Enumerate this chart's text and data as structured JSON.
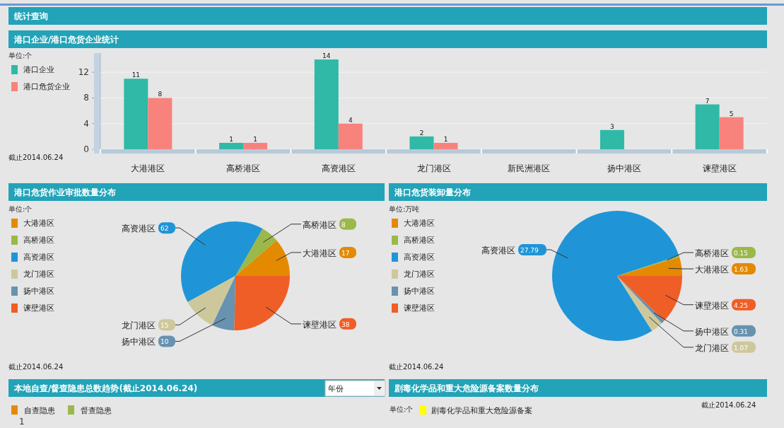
{
  "chart_data": [
    {
      "type": "bar",
      "subtitle": "统计查询",
      "title": "港口企业/港口危货企业统计",
      "categories": [
        "大港港区",
        "高桥港区",
        "高资港区",
        "龙门港区",
        "新民洲港区",
        "扬中港区",
        "谏壁港区"
      ],
      "series": [
        {
          "name": "港口企业",
          "color": "#2fb9a6",
          "values": [
            11,
            1,
            14,
            2,
            null,
            3,
            7
          ]
        },
        {
          "name": "港口危货企业",
          "color": "#f8827c",
          "values": [
            8,
            1,
            4,
            1,
            null,
            null,
            5
          ]
        }
      ],
      "ylim": [
        0,
        15
      ],
      "yticks": [
        0,
        4,
        8,
        12
      ],
      "grid": "y",
      "data_labels": true,
      "legend": "top left",
      "annotations": [
        "单位:个",
        "截止2014.06.24"
      ]
    },
    {
      "type": "pie",
      "title": "港口危货作业审批数量分布",
      "categories": [
        "大港港区",
        "高桥港区",
        "高资港区",
        "龙门港区",
        "扬中港区",
        "谏壁港区"
      ],
      "values": [
        17,
        8,
        62,
        15,
        10,
        38
      ],
      "colors": [
        "#e38a00",
        "#9bb84a",
        "#1f95d8",
        "#cdc89c",
        "#6792b0",
        "#ef5e26"
      ],
      "data_labels": true,
      "legend": "top left",
      "annotations": [
        "单位:个",
        "截止2014.06.24"
      ]
    },
    {
      "type": "pie",
      "title": "港口危货装卸量分布",
      "categories": [
        "大港港区",
        "高桥港区",
        "高资港区",
        "龙门港区",
        "扬中港区",
        "谏壁港区"
      ],
      "values": [
        1.63,
        0.15,
        27.79,
        1.07,
        0.31,
        4.25
      ],
      "colors": [
        "#e38a00",
        "#9bb84a",
        "#1f95d8",
        "#cdc89c",
        "#6792b0",
        "#ef5e26"
      ],
      "data_labels": true,
      "legend": "top left",
      "annotations": [
        "单位:万吨",
        "截止2014.06.24"
      ]
    },
    {
      "type": "other",
      "title": "本地自查/督查隐患总数趋势(截止2014.06.24)",
      "series": [
        {
          "name": "自查隐患",
          "color": "#e38a00"
        },
        {
          "name": "督查隐患",
          "color": "#9bb84a"
        }
      ],
      "legend": "top left",
      "annotations": [
        "年份",
        "1"
      ]
    },
    {
      "type": "other",
      "title": "剧毒化学品和重大危险源备案数量分布",
      "series": [
        {
          "name": "剧毒化学品和重大危险源备案",
          "color": "#ffff00"
        }
      ],
      "legend": "top",
      "annotations": [
        "单位:个",
        "截止2014.06.24"
      ]
    }
  ]
}
